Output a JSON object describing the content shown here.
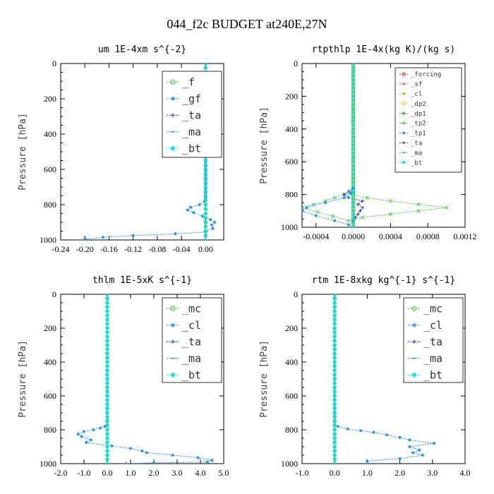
{
  "figure": {
    "title": "044_f2c  BUDGET at240E,27N"
  },
  "chart_data": [
    {
      "type": "line",
      "title": "um  1E-4xm s^{-2}",
      "ylabel": "Pressure [hPa]",
      "xlim": [
        -0.24,
        0.03
      ],
      "ylim": [
        1000,
        0
      ],
      "xticks": [
        "-0.24",
        "-0.20",
        "-0.16",
        "-0.12",
        "-0.08",
        "-0.04",
        "0.00"
      ],
      "xtick_values": [
        -0.24,
        -0.2,
        -0.16,
        -0.12,
        -0.08,
        -0.04,
        0.0
      ],
      "yticks": [
        "0",
        "200",
        "400",
        "600",
        "800",
        "1000"
      ],
      "ytick_values": [
        0,
        200,
        400,
        600,
        800,
        1000
      ],
      "legend": {
        "placement": "top-right",
        "size": "large",
        "entries": [
          "_f",
          "_gf",
          "_ta",
          "_ma",
          "_bt"
        ]
      },
      "series": [
        {
          "name": "_f",
          "color": "#33cc33",
          "marker": "circle",
          "x": [
            0.0,
            0.0
          ],
          "y": [
            0,
            1000
          ]
        },
        {
          "name": "_gf",
          "color": "#1e90ff",
          "marker": "star",
          "x": [
            0.0,
            0.0,
            -0.002,
            -0.01,
            -0.025,
            -0.03,
            -0.02,
            -0.005,
            0.008,
            0.015,
            0.01,
            0.012,
            0.0,
            -0.05,
            -0.12,
            -0.17,
            -0.2
          ],
          "y": [
            0,
            760,
            780,
            800,
            815,
            830,
            845,
            865,
            885,
            900,
            915,
            935,
            955,
            965,
            975,
            985,
            995
          ]
        },
        {
          "name": "_ta",
          "color": "#2233cc",
          "marker": "plus",
          "x": [
            0.0,
            0.0
          ],
          "y": [
            0,
            1000
          ]
        },
        {
          "name": "_ma",
          "color": "#00aacc",
          "marker": "dash",
          "x": [
            0.0,
            0.0
          ],
          "y": [
            0,
            1000
          ]
        },
        {
          "name": "_bt",
          "color": "#00e5ee",
          "marker": "diamond",
          "x": [
            0.0,
            0.0
          ],
          "y": [
            0,
            1000
          ]
        }
      ]
    },
    {
      "type": "line",
      "title": "rtpthlp  1E-4x(kg K)/(kg s)",
      "ylabel": "Pressure [hPa]",
      "xlim": [
        -0.00055,
        0.0012
      ],
      "ylim": [
        1000,
        0
      ],
      "xticks": [
        "-0.0004",
        "0.0000",
        "0.0004",
        "0.0008",
        "0.0012"
      ],
      "xtick_values": [
        -0.0004,
        0.0,
        0.0004,
        0.0008,
        0.0012
      ],
      "yticks": [
        "0",
        "200",
        "400",
        "600",
        "800",
        "1000"
      ],
      "ytick_values": [
        0,
        200,
        400,
        600,
        800,
        1000
      ],
      "legend": {
        "placement": "top-right",
        "size": "small",
        "entries": [
          "_forcing",
          "_sf",
          "_cl",
          "_dp2",
          "_dp1",
          "_tp2",
          "_tp1",
          "_ta",
          "_ma",
          "_bt"
        ]
      },
      "series": [
        {
          "name": "_forcing",
          "color": "#cc2222",
          "marker": "circle",
          "x": [
            0.0,
            0.0
          ],
          "y": [
            0,
            1000
          ]
        },
        {
          "name": "_sf",
          "color": "#ff2222",
          "marker": "plus",
          "x": [
            0.0,
            0.0
          ],
          "y": [
            0,
            1000
          ]
        },
        {
          "name": "_cl",
          "color": "#ddaa00",
          "marker": "star",
          "x": [
            0.0,
            0.0
          ],
          "y": [
            0,
            1000
          ]
        },
        {
          "name": "_dp2",
          "color": "#eecc33",
          "marker": "square",
          "x": [
            0.0,
            0.0
          ],
          "y": [
            0,
            1000
          ]
        },
        {
          "name": "_dp1",
          "color": "#339933",
          "marker": "cross",
          "x": [
            0.0,
            0.0
          ],
          "y": [
            0,
            1000
          ]
        },
        {
          "name": "_tp2",
          "color": "#44cc44",
          "marker": "cross",
          "x": [
            0.0,
            -1e-05,
            -3e-05,
            0.00015,
            0.0004,
            0.0007,
            0.001,
            0.0007,
            0.0004,
            0.0001,
            -5e-05,
            -0.00055,
            -0.0003,
            -0.0001,
            0.0
          ],
          "y": [
            760,
            780,
            800,
            820,
            840,
            860,
            880,
            900,
            920,
            940,
            960,
            880,
            840,
            800,
            780
          ]
        },
        {
          "name": "_tp1",
          "color": "#1e90ff",
          "marker": "star",
          "x": [
            0.0,
            -3e-05,
            -0.0001,
            -0.0003,
            -0.0005,
            -0.00055,
            -0.0004,
            -0.0002,
            -5e-05,
            0.0
          ],
          "y": [
            770,
            790,
            820,
            850,
            880,
            900,
            930,
            960,
            985,
            1000
          ]
        },
        {
          "name": "_ta",
          "color": "#2233cc",
          "marker": "plus",
          "x": [
            0.0,
            -5e-05,
            -0.0001,
            -5e-05,
            0.0001,
            5e-05,
            0.0001,
            5e-05,
            0.0
          ],
          "y": [
            760,
            780,
            800,
            820,
            840,
            860,
            880,
            920,
            960
          ]
        },
        {
          "name": "_ma",
          "color": "#00aacc",
          "marker": "dash",
          "x": [
            0.0,
            0.0
          ],
          "y": [
            0,
            1000
          ]
        },
        {
          "name": "_bt",
          "color": "#00e5ee",
          "marker": "diamond",
          "x": [
            0.0,
            0.0
          ],
          "y": [
            0,
            1000
          ]
        }
      ]
    },
    {
      "type": "line",
      "title": "thlm  1E-5xK s^{-1}",
      "ylabel": "Pressure [hPa]",
      "xlim": [
        -2.0,
        5.0
      ],
      "ylim": [
        1000,
        0
      ],
      "xticks": [
        "-2.0",
        "-1.0",
        "0.0",
        "1.0",
        "2.0",
        "3.0",
        "4.0",
        "5.0"
      ],
      "xtick_values": [
        -2.0,
        -1.0,
        0.0,
        1.0,
        2.0,
        3.0,
        4.0,
        5.0
      ],
      "yticks": [
        "0",
        "200",
        "400",
        "600",
        "800",
        "1000"
      ],
      "ytick_values": [
        0,
        200,
        400,
        600,
        800,
        1000
      ],
      "legend": {
        "placement": "top-right",
        "size": "large",
        "entries": [
          "_mc",
          "_cl",
          "_ta",
          "_ma",
          "_bt"
        ]
      },
      "series": [
        {
          "name": "_mc",
          "color": "#33cc33",
          "marker": "circle",
          "x": [
            0.0,
            0.0
          ],
          "y": [
            0,
            1000
          ]
        },
        {
          "name": "_cl",
          "color": "#1e90ff",
          "marker": "star",
          "x": [
            0.0,
            0.0,
            -0.1,
            -0.3,
            -0.6,
            -1.0,
            -1.25,
            -1.1,
            -0.7,
            -0.9,
            0.2,
            1.0,
            1.5,
            1.7,
            2.8,
            3.9,
            4.5,
            4.3,
            2.0,
            0.8
          ],
          "y": [
            0,
            770,
            780,
            790,
            800,
            810,
            825,
            840,
            860,
            875,
            895,
            910,
            925,
            935,
            950,
            965,
            980,
            990,
            995,
            1000
          ]
        },
        {
          "name": "_ta",
          "color": "#2233cc",
          "marker": "plus",
          "x": [
            0.0,
            0.0
          ],
          "y": [
            0,
            1000
          ]
        },
        {
          "name": "_ma",
          "color": "#00aacc",
          "marker": "dash",
          "x": [
            0.0,
            0.0
          ],
          "y": [
            0,
            1000
          ]
        },
        {
          "name": "_bt",
          "color": "#00e5ee",
          "marker": "diamond",
          "x": [
            0.0,
            0.0
          ],
          "y": [
            0,
            1000
          ]
        }
      ]
    },
    {
      "type": "line",
      "title": "rtm  1E-8xkg kg^{-1} s^{-1}",
      "ylabel": "Pressure [hPa]",
      "xlim": [
        -1.0,
        4.0
      ],
      "ylim": [
        1000,
        0
      ],
      "xticks": [
        "-1.0",
        "0.0",
        "1.0",
        "2.0",
        "3.0",
        "4.0"
      ],
      "xtick_values": [
        -1.0,
        0.0,
        1.0,
        2.0,
        3.0,
        4.0
      ],
      "yticks": [
        "0",
        "200",
        "400",
        "600",
        "800",
        "1000"
      ],
      "ytick_values": [
        0,
        200,
        400,
        600,
        800,
        1000
      ],
      "legend": {
        "placement": "top-right",
        "size": "large",
        "entries": [
          "_mc",
          "_cl",
          "_ta",
          "_ma",
          "_bt"
        ]
      },
      "series": [
        {
          "name": "_mc",
          "color": "#33cc33",
          "marker": "circle",
          "x": [
            0.0,
            0.0
          ],
          "y": [
            0,
            1000
          ]
        },
        {
          "name": "_cl",
          "color": "#1e90ff",
          "marker": "star",
          "x": [
            0.0,
            0.0,
            0.1,
            0.4,
            0.8,
            1.2,
            1.6,
            2.0,
            2.3,
            3.05,
            2.3,
            2.6,
            2.4,
            2.7,
            2.0,
            1.0,
            1.0
          ],
          "y": [
            0,
            770,
            780,
            795,
            805,
            815,
            830,
            845,
            860,
            880,
            900,
            920,
            935,
            950,
            970,
            985,
            1000
          ]
        },
        {
          "name": "_ta",
          "color": "#2233cc",
          "marker": "plus",
          "x": [
            0.0,
            0.0
          ],
          "y": [
            0,
            1000
          ]
        },
        {
          "name": "_ma",
          "color": "#00aacc",
          "marker": "dash",
          "x": [
            0.0,
            0.0
          ],
          "y": [
            0,
            1000
          ]
        },
        {
          "name": "_bt",
          "color": "#00e5ee",
          "marker": "diamond",
          "x": [
            0.0,
            0.0
          ],
          "y": [
            0,
            1000
          ]
        }
      ]
    }
  ]
}
